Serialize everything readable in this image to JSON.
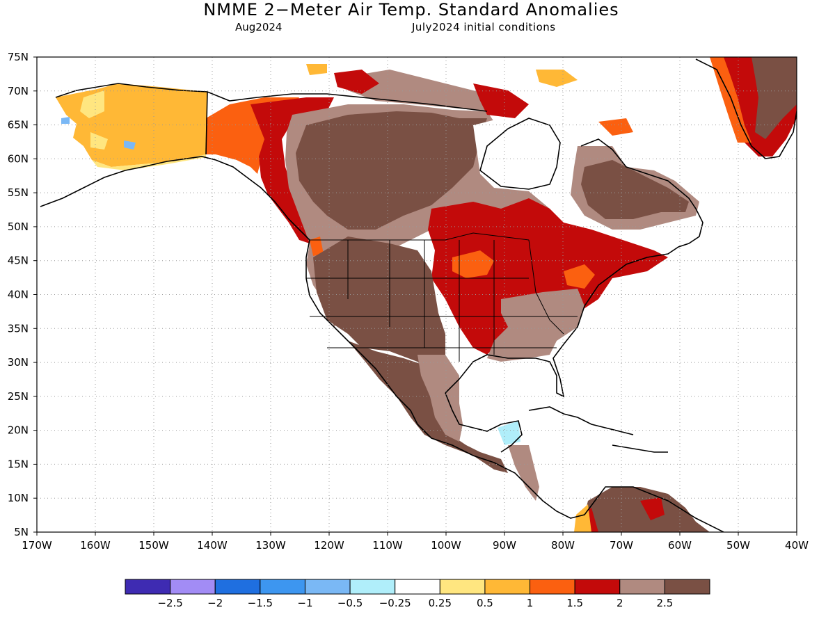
{
  "title": "NMME 2−Meter Air Temp. Standard Anomalies",
  "subtitle_left": "Aug2024",
  "subtitle_right": "July2024 initial conditions",
  "axes": {
    "lon_ticks": [
      "170W",
      "160W",
      "150W",
      "140W",
      "130W",
      "120W",
      "110W",
      "100W",
      "90W",
      "80W",
      "70W",
      "60W",
      "50W",
      "40W"
    ],
    "lat_ticks": [
      "75N",
      "70N",
      "65N",
      "60N",
      "55N",
      "50N",
      "45N",
      "40N",
      "35N",
      "30N",
      "25N",
      "20N",
      "15N",
      "10N",
      "5N"
    ],
    "lon_range": [
      -170,
      -40
    ],
    "lat_range": [
      5,
      75
    ],
    "grid": "dotted"
  },
  "colorbar": {
    "colors": [
      "#3e2bb2",
      "#a28cf5",
      "#1f6fe0",
      "#3d96f0",
      "#7ab8f5",
      "#b0eefa",
      "#ffffff",
      "#ffe680",
      "#ffb836",
      "#fb6010",
      "#c30a0a",
      "#b08a80",
      "#7a5044"
    ],
    "labels": [
      "−2.5",
      "−2",
      "−1.5",
      "−1",
      "−0.5",
      "−0.25",
      "0.25",
      "0.5",
      "1",
      "1.5",
      "2",
      "2.5"
    ]
  },
  "map": {
    "regions": [
      {
        "name": "alaska-interior",
        "level": "0.5 to 1",
        "color": "#ffb836"
      },
      {
        "name": "alaska-coast",
        "level": "0.25 to 0.5",
        "color": "#ffe680"
      },
      {
        "name": "yukon-bc",
        "level": "1 to 1.5",
        "color": "#fb6010"
      },
      {
        "name": "western-canada",
        "level": "1.5 to 2",
        "color": "#c30a0a"
      },
      {
        "name": "central-canada",
        "level": "> 2.5",
        "color": "#7a5044"
      },
      {
        "name": "hudson-bay-west",
        "level": "2 to 2.5",
        "color": "#b08a80"
      },
      {
        "name": "great-lakes-east",
        "level": "1.5 to 2",
        "color": "#c30a0a"
      },
      {
        "name": "western-us",
        "level": "> 2.5",
        "color": "#7a5044"
      },
      {
        "name": "southeast-us",
        "level": "2 to 2.5",
        "color": "#b08a80"
      },
      {
        "name": "mexico",
        "level": "> 2.5",
        "color": "#7a5044"
      },
      {
        "name": "quebec-labrador",
        "level": "> 2.5",
        "color": "#7a5044"
      },
      {
        "name": "greenland",
        "level": "> 2.5",
        "color": "#7a5044"
      },
      {
        "name": "venezuela",
        "level": "> 2.5",
        "color": "#7a5044"
      }
    ]
  }
}
